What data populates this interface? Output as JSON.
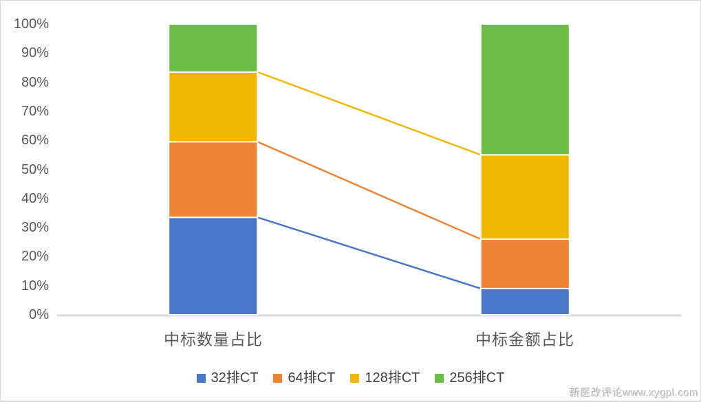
{
  "watermark": {
    "text": "新医改评论www.xygpl.com"
  },
  "colors": {
    "axis_line": "#d9d9d9",
    "frame_border": "#d9d9d9",
    "tick_text": "#595959",
    "category_text": "#595959",
    "legend_text": "#404040",
    "segment_separator": "#ffffff",
    "background": "#ffffff"
  },
  "chart_data": {
    "type": "bar",
    "subtype": "stacked-100-percent-column-with-series-lines",
    "title": "",
    "xlabel": "",
    "ylabel": "",
    "categories": [
      "中标数量占比",
      "中标金额占比"
    ],
    "series": [
      {
        "name": "32排CT",
        "color": "#4A76C8",
        "values": [
          33.5,
          9.0
        ]
      },
      {
        "name": "64排CT",
        "color": "#EE8433",
        "values": [
          26.0,
          17.0
        ]
      },
      {
        "name": "128排CT",
        "color": "#F1B705",
        "values": [
          24.0,
          29.0
        ]
      },
      {
        "name": "256排CT",
        "color": "#6CBD45",
        "values": [
          16.5,
          45.0
        ]
      }
    ],
    "ylim": [
      0,
      100
    ],
    "ytick_labels": [
      "0%",
      "10%",
      "20%",
      "30%",
      "40%",
      "50%",
      "60%",
      "70%",
      "80%",
      "90%",
      "100%"
    ],
    "gridlines": false,
    "legend_position": "bottom",
    "series_lines": true
  }
}
